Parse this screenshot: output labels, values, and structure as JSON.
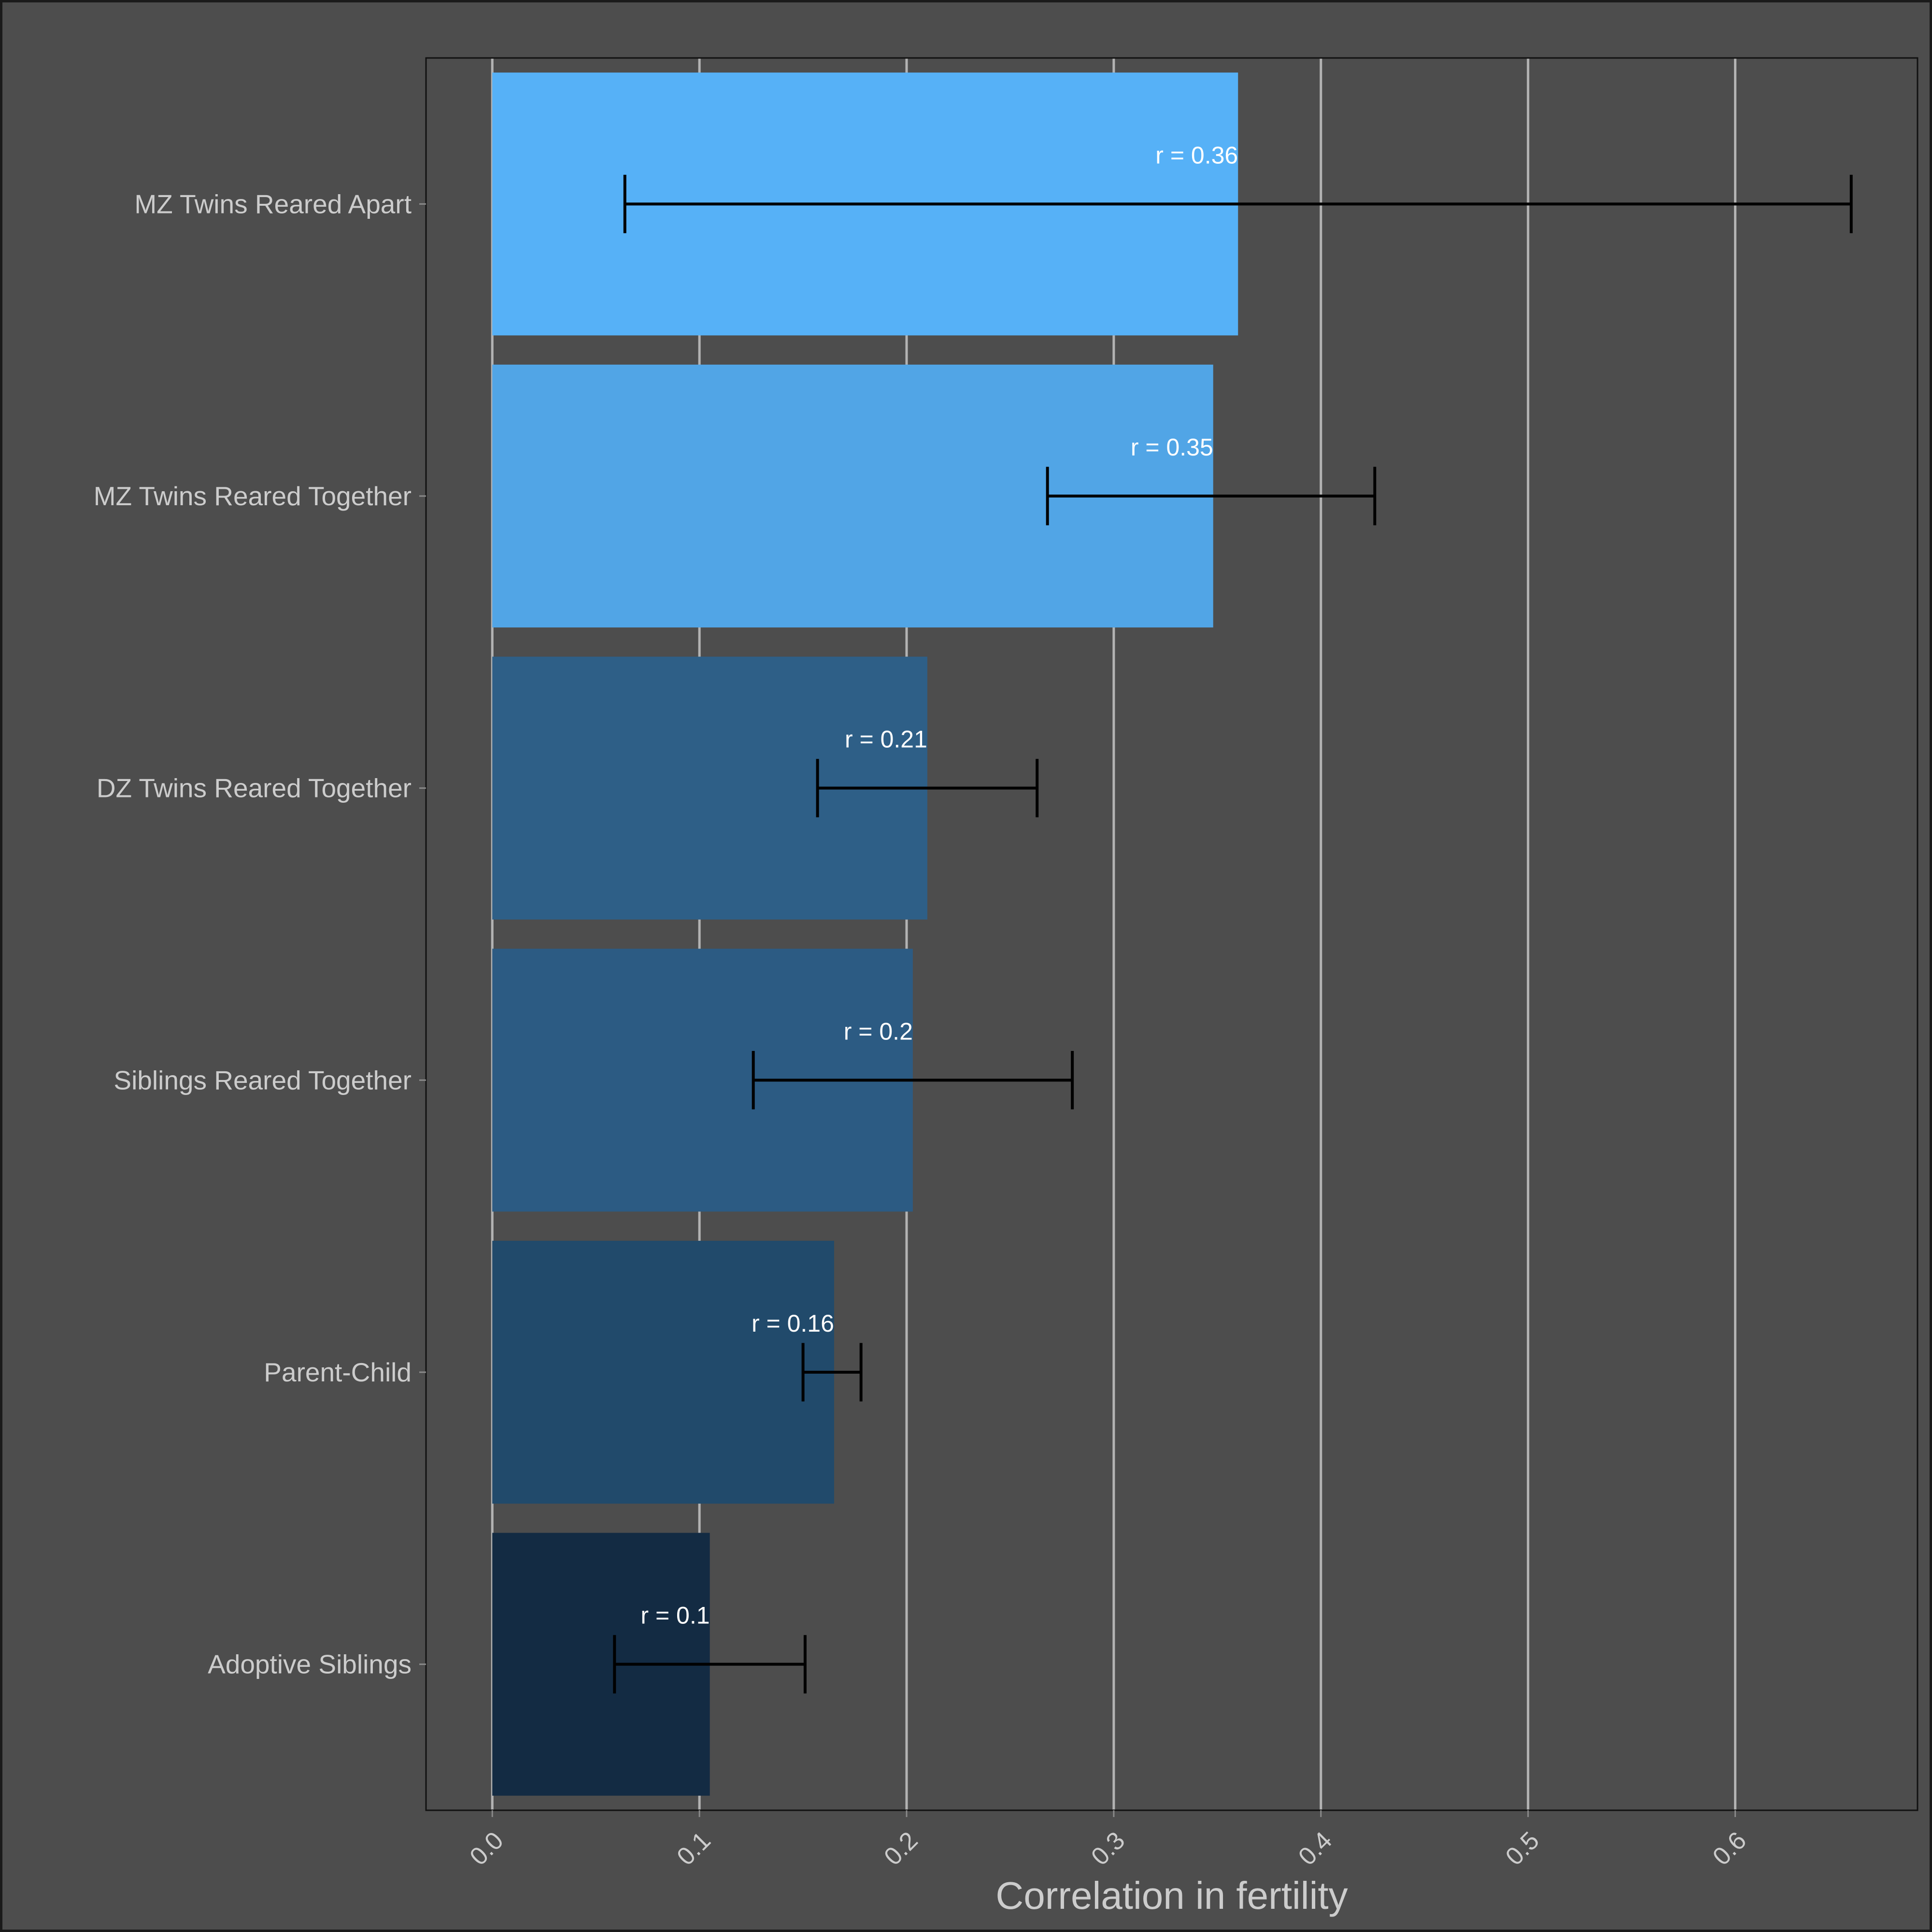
{
  "chart_data": {
    "type": "bar",
    "orientation": "horizontal",
    "title": "",
    "xlabel": "Correlation in fertility",
    "ylabel": "",
    "xlim": [
      -0.032,
      0.688
    ],
    "x_ticks": [
      0.0,
      0.1,
      0.2,
      0.3,
      0.4,
      0.5,
      0.6
    ],
    "x_tick_labels": [
      "0.0",
      "0.1",
      "0.2",
      "0.3",
      "0.4",
      "0.5",
      "0.6"
    ],
    "grid": true,
    "legend": "none",
    "categories": [
      "MZ Twins Reared Apart",
      "MZ Twins Reared Together",
      "DZ Twins Reared Together",
      "Siblings Reared Together",
      "Parent-Child",
      "Adoptive Siblings"
    ],
    "values": [
      0.36,
      0.348,
      0.21,
      0.203,
      0.165,
      0.105
    ],
    "ci_lower": [
      0.064,
      0.268,
      0.157,
      0.126,
      0.15,
      0.059
    ],
    "ci_upper": [
      0.656,
      0.426,
      0.263,
      0.28,
      0.178,
      0.151
    ],
    "value_labels": [
      "r = 0.36",
      "r = 0.35",
      "r = 0.21",
      "r = 0.2",
      "r = 0.16",
      "r = 0.1"
    ],
    "colors": [
      "#56b1f7",
      "#51a5e6",
      "#2e5f87",
      "#2c5b83",
      "#214a6b",
      "#132b43"
    ]
  }
}
